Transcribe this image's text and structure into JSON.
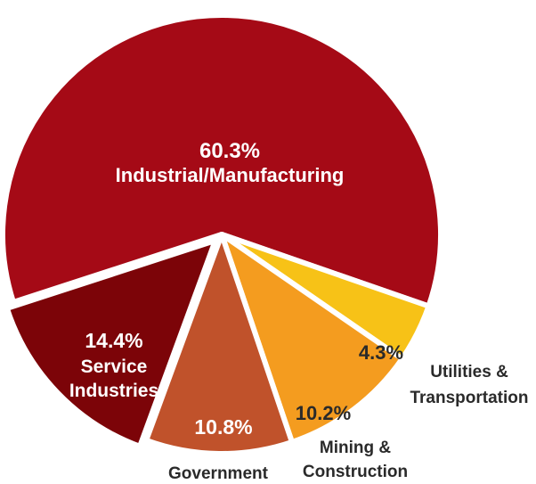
{
  "chart_data": {
    "type": "pie",
    "title": "",
    "slices": [
      {
        "label": "Industrial/Manufacturing",
        "value": 60.3,
        "value_label": "60.3%",
        "color": "#a50a16"
      },
      {
        "label": "Utilities & Transportation",
        "value": 4.3,
        "value_label": "4.3%",
        "color": "#f7c217"
      },
      {
        "label": "Mining & Construction",
        "value": 10.2,
        "value_label": "10.2%",
        "color": "#f49c1f"
      },
      {
        "label": "Government",
        "value": 10.8,
        "value_label": "10.8%",
        "color": "#c0522b"
      },
      {
        "label": "Service Industries",
        "value": 14.4,
        "value_label": "14.4%",
        "color": "#7c0408"
      }
    ],
    "label_text": {
      "industrial": [
        "Industrial/Manufacturing"
      ],
      "utilities": [
        "Utilities &",
        "Transportation"
      ],
      "mining": [
        "Mining &",
        "Construction"
      ],
      "government": [
        "Government"
      ],
      "service": [
        "Service",
        "Industries"
      ]
    },
    "legend": "none",
    "colors": {
      "label_on_dark": "#ffffff",
      "label_on_light": "#2a2a2a",
      "separator": "#ffffff"
    }
  }
}
